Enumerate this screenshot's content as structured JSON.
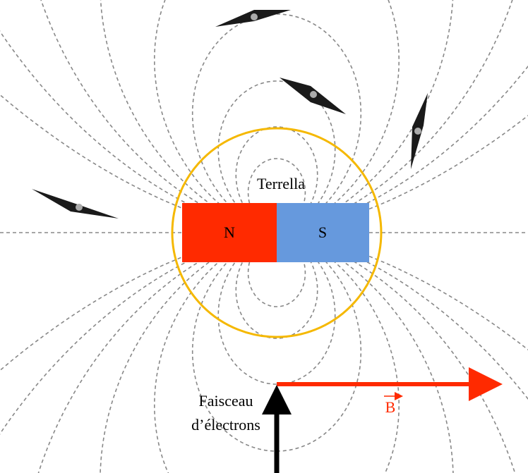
{
  "diagram": {
    "label": "Terrella",
    "magnet": {
      "north": "N",
      "south": "S"
    },
    "field_label": "B",
    "beam_label": [
      "Faisceau",
      "d’électrons"
    ]
  }
}
